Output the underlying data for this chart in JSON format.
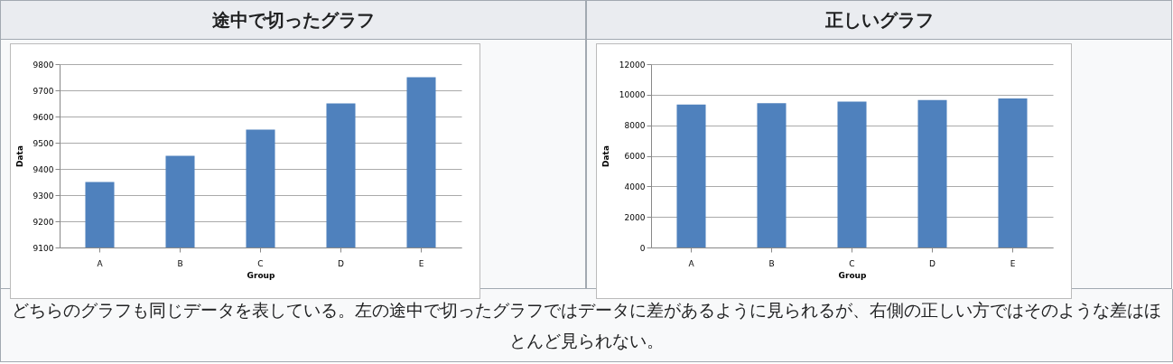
{
  "chart_data": [
    {
      "type": "bar",
      "title": "途中で切ったグラフ",
      "xlabel": "Group",
      "ylabel": "Data",
      "categories": [
        "A",
        "B",
        "C",
        "D",
        "E"
      ],
      "values": [
        9350,
        9450,
        9550,
        9650,
        9750
      ],
      "color": "#4f81bd",
      "ylim": [
        9100,
        9800
      ],
      "yticks": [
        9100,
        9200,
        9300,
        9400,
        9500,
        9600,
        9700,
        9800
      ],
      "grid": "y"
    },
    {
      "type": "bar",
      "title": "正しいグラフ",
      "xlabel": "Group",
      "ylabel": "Data",
      "categories": [
        "A",
        "B",
        "C",
        "D",
        "E"
      ],
      "values": [
        9350,
        9450,
        9550,
        9650,
        9750
      ],
      "color": "#4f81bd",
      "ylim": [
        0,
        12000
      ],
      "yticks": [
        0,
        2000,
        4000,
        6000,
        8000,
        10000,
        12000
      ],
      "grid": "y",
      "annotations": [
        "どちらのグラフも同じデータを表している。左の途中で切ったグラフではデータに差があるように見られるが、右側の正しい方ではそのような差はほとんど見られない。"
      ]
    }
  ]
}
